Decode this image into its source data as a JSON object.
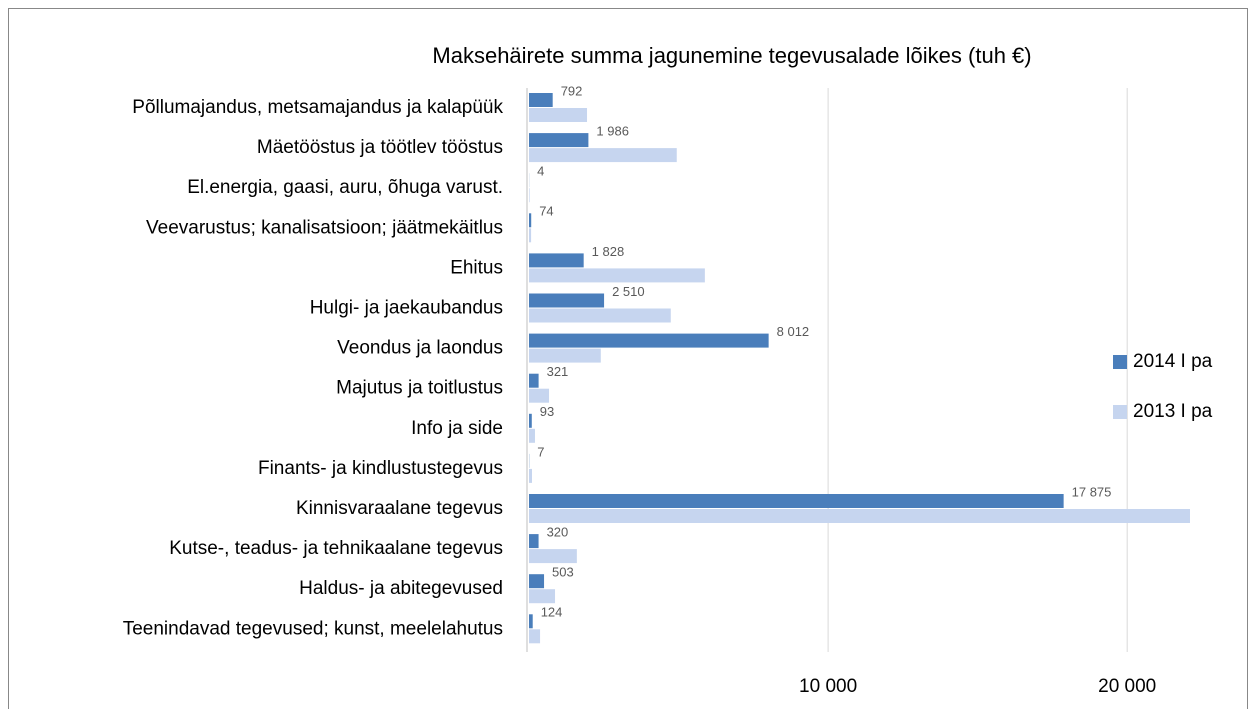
{
  "chart_data": {
    "type": "bar",
    "orientation": "horizontal",
    "title": "Maksehäirete summa jagunemine tegevusalade lõikes (tuh €)",
    "categories": [
      "Põllumajandus, metsamajandus ja kalapüük",
      "Mäetööstus ja töötlev tööstus",
      "El.energia, gaasi, auru, õhuga varust.",
      "Veevarustus; kanalisatsioon; jäätmekäitlus",
      "Ehitus",
      "Hulgi- ja jaekaubandus",
      "Veondus ja laondus",
      "Majutus ja toitlustus",
      "Info ja side",
      "Finants- ja kindlustustegevus",
      "Kinnisvaraalane tegevus",
      "Kutse-, teadus- ja tehnikaalane tegevus",
      "Haldus- ja abitegevused",
      "Teenindavad tegevused; kunst, meelelahutus"
    ],
    "series": [
      {
        "name": "2014 I pa",
        "color": "#4a7ebb",
        "values": [
          792,
          1986,
          4,
          74,
          1828,
          2510,
          8012,
          321,
          93,
          7,
          17875,
          320,
          503,
          124
        ],
        "value_labels": [
          "792",
          "1 986",
          "4",
          "74",
          "1 828",
          "2 510",
          "8 012",
          "321",
          "93",
          "7",
          "17 875",
          "320",
          "503",
          "124"
        ]
      },
      {
        "name": "2013 I pa",
        "color": "#c6d5ef",
        "values": [
          1940,
          4940,
          20,
          70,
          5880,
          4740,
          2400,
          670,
          200,
          100,
          22100,
          1600,
          870,
          370
        ]
      }
    ],
    "xlim": [
      0,
      22100
    ],
    "xticks": [
      {
        "value": 10000,
        "label": "10 000"
      },
      {
        "value": 20000,
        "label": "20 000"
      }
    ],
    "grid": true,
    "legend": "right"
  }
}
